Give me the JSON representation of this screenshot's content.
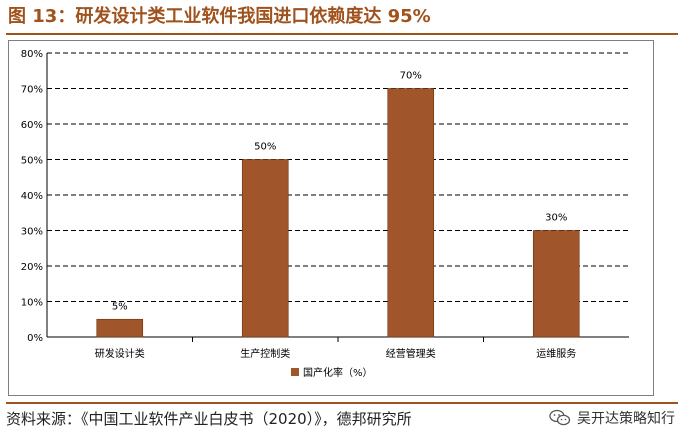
{
  "figure_title": "图 13：研发设计类工业软件我国进口依赖度达 95%",
  "source_note": "资料来源：《中国工业软件产业白皮书（2020）》，德邦研究所",
  "watermark_text": "吴开达策略知行",
  "colors": {
    "accent": "#a0521d",
    "bar": "#a0562a"
  },
  "chart_data": {
    "type": "bar",
    "categories": [
      "研发设计类",
      "生产控制类",
      "经营管理类",
      "运维服务"
    ],
    "series": [
      {
        "name": "国产化率（%）",
        "values": [
          5,
          50,
          70,
          30
        ],
        "labels": [
          "5%",
          "50%",
          "70%",
          "30%"
        ]
      }
    ],
    "ylim": [
      0,
      80
    ],
    "yticks": [
      0,
      10,
      20,
      30,
      40,
      50,
      60,
      70,
      80
    ],
    "ytick_labels": [
      "0%",
      "10%",
      "20%",
      "30%",
      "40%",
      "50%",
      "60%",
      "70%",
      "80%"
    ],
    "grid": "dashed horizontal",
    "legend_position": "bottom"
  }
}
